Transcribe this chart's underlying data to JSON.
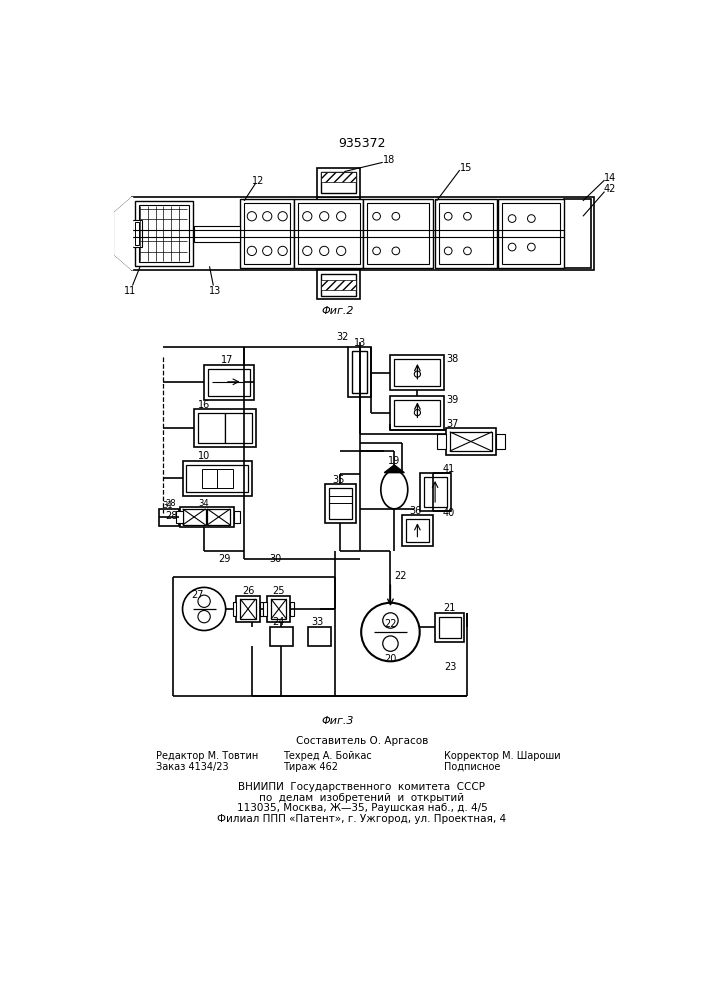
{
  "patent_number": "935372",
  "fig2_label": "Φиг.2",
  "fig3_label": "Φиг.3",
  "footer_line1_left": "Редактор М. Товтин",
  "footer_line2_left": "Заказ 4134/23",
  "footer_line1_center": "Составитель О. Аргасов",
  "footer_line2_center": "Техред А. Бойкас",
  "footer_line3_center": "Тираж 462",
  "footer_line1_right": "Корректор М. Шароши",
  "footer_line2_right": "Подписное",
  "vniip_line1": "ВНИИПИ  Государственного  комитета  СССР",
  "vniip_line2": "по  делам  изобретений  и  открытий",
  "vniip_line3": "113035, Москва, Ж—35, Раушская наб., д. 4/5",
  "vniip_line4": "Филиал ППП «Патент», г. Ужгород, ул. Проектная, 4",
  "bg_color": "#ffffff",
  "line_color": "#000000",
  "text_color": "#000000"
}
